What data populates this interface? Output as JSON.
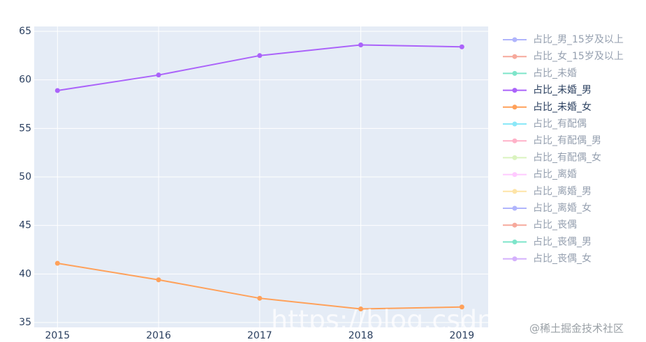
{
  "chart_data": {
    "type": "line",
    "x": [
      2015,
      2016,
      2017,
      2018,
      2019
    ],
    "xlim": [
      2014.77,
      2019.26
    ],
    "xticks": [
      2015,
      2016,
      2017,
      2018,
      2019
    ],
    "ylim": [
      34.5,
      65.5
    ],
    "yticks": [
      35,
      40,
      45,
      50,
      55,
      60,
      65
    ],
    "grid": true,
    "series": [
      {
        "name": "占比_男_15岁及以上",
        "color": "#636efa",
        "visible": false,
        "values": [
          null,
          null,
          null,
          null,
          null
        ]
      },
      {
        "name": "占比_女_15岁及以上",
        "color": "#ef553b",
        "visible": false,
        "values": [
          null,
          null,
          null,
          null,
          null
        ]
      },
      {
        "name": "占比_未婚",
        "color": "#00cc96",
        "visible": false,
        "values": [
          null,
          null,
          null,
          null,
          null
        ]
      },
      {
        "name": "占比_未婚_男",
        "color": "#ab63fa",
        "visible": true,
        "values": [
          58.9,
          60.5,
          62.5,
          63.6,
          63.4
        ]
      },
      {
        "name": "占比_未婚_女",
        "color": "#ffa15a",
        "visible": true,
        "values": [
          41.1,
          39.4,
          37.5,
          36.4,
          36.6
        ]
      },
      {
        "name": "占比_有配偶",
        "color": "#19d3f3",
        "visible": false,
        "values": [
          null,
          null,
          null,
          null,
          null
        ]
      },
      {
        "name": "占比_有配偶_男",
        "color": "#ff6692",
        "visible": false,
        "values": [
          null,
          null,
          null,
          null,
          null
        ]
      },
      {
        "name": "占比_有配偶_女",
        "color": "#b6e880",
        "visible": false,
        "values": [
          null,
          null,
          null,
          null,
          null
        ]
      },
      {
        "name": "占比_离婚",
        "color": "#ff97ff",
        "visible": false,
        "values": [
          null,
          null,
          null,
          null,
          null
        ]
      },
      {
        "name": "占比_离婚_男",
        "color": "#fecb52",
        "visible": false,
        "values": [
          null,
          null,
          null,
          null,
          null
        ]
      },
      {
        "name": "占比_离婚_女",
        "color": "#636efa",
        "visible": false,
        "values": [
          null,
          null,
          null,
          null,
          null
        ]
      },
      {
        "name": "占比_丧偶",
        "color": "#ef553b",
        "visible": false,
        "values": [
          null,
          null,
          null,
          null,
          null
        ]
      },
      {
        "name": "占比_丧偶_男",
        "color": "#00cc96",
        "visible": false,
        "values": [
          null,
          null,
          null,
          null,
          null
        ]
      },
      {
        "name": "占比_丧偶_女",
        "color": "#ab63fa",
        "visible": false,
        "values": [
          null,
          null,
          null,
          null,
          null
        ]
      }
    ],
    "watermarks": [
      "https://blog.csdn.n",
      "@稀土掘金技术社区"
    ]
  }
}
